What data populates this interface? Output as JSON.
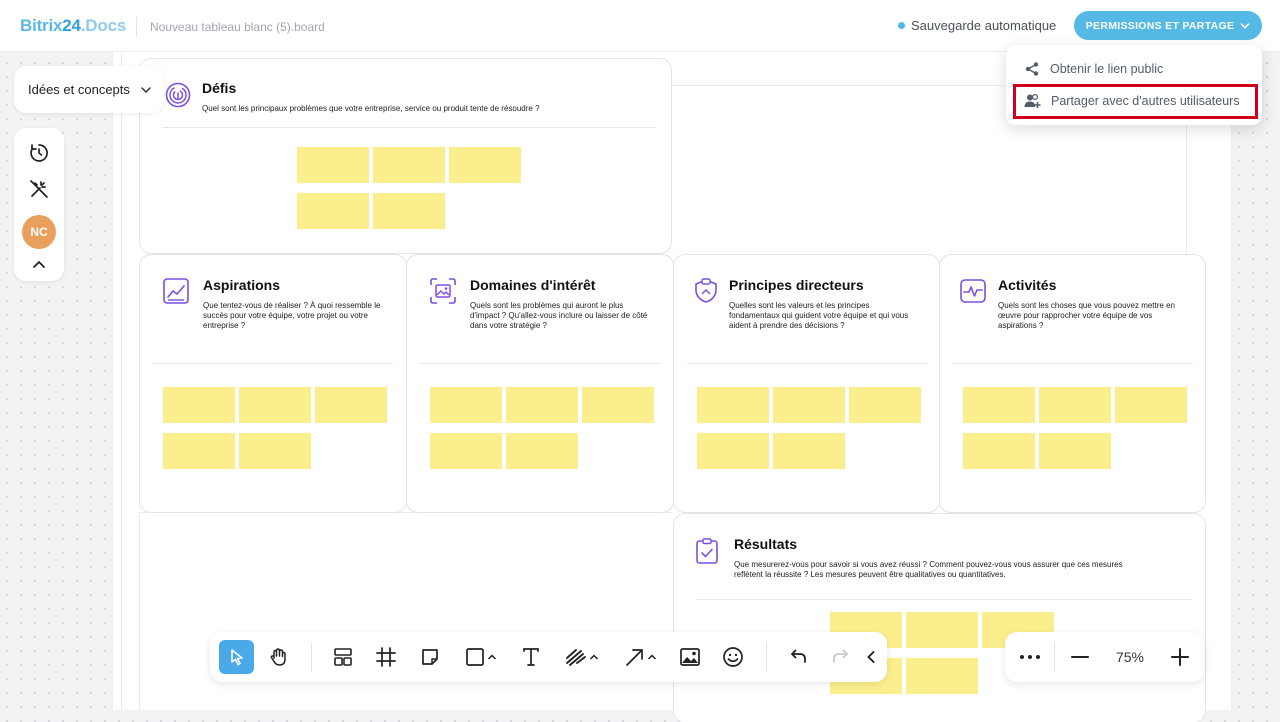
{
  "app": {
    "brand_part1": "Bitrix",
    "brand_part2": "24",
    "brand_part3": ".Docs"
  },
  "document": {
    "name": "Nouveau tableau blanc (5).board"
  },
  "status": {
    "autosave": "Sauvegarde automatique"
  },
  "header": {
    "permissions_button": "PERMISSIONS ET PARTAGE"
  },
  "share_menu": {
    "items": [
      {
        "label": "Obtenir le lien public",
        "icon": "share-icon"
      },
      {
        "label": "Partager avec d'autres utilisateurs",
        "icon": "add-users-icon"
      }
    ]
  },
  "board_selector": {
    "label": "Idées et concepts"
  },
  "user": {
    "initials": "NC"
  },
  "cards": {
    "defis": {
      "title": "Défis",
      "description": "Quel sont les principaux problèmes que votre entreprise, service ou produit tente de résoudre ?",
      "icon": "fingerprint-icon"
    },
    "aspirations": {
      "title": "Aspirations",
      "description": "Que tentez-vous de réaliser ? À quoi ressemble le succès pour votre équipe, votre projet ou votre entreprise ?",
      "icon": "chart-icon"
    },
    "domaines": {
      "title": "Domaines d'intérêt",
      "description": "Quels sont les problèmes qui auront le plus d'impact ? Qu'allez-vous inclure ou laisser de côté dans votre stratégie ?",
      "icon": "image-focus-icon"
    },
    "principes": {
      "title": "Principes directeurs",
      "description": "Quelles sont les valeurs et les principes fondamentaux qui guident votre équipe et qui vous aident à prendre des décisions ?",
      "icon": "shield-icon"
    },
    "activites": {
      "title": "Activités",
      "description": "Quels sont les choses que vous pouvez mettre en œuvre pour rapprocher votre équipe de vos aspirations ?",
      "icon": "activity-icon"
    },
    "resultats": {
      "title": "Résultats",
      "description": "Que mesurerez-vous pour savoir si vous avez réussi ? Comment pouvez-vous vous assurer que ces mesures reflètent la réussite ? Les mesures peuvent être qualitatives ou quantitatives.",
      "icon": "clipboard-check-icon"
    }
  },
  "zoom": {
    "value": "75%"
  },
  "colors": {
    "accent": "#55b9e6",
    "sticky": "#fbef8d",
    "highlight": "#d0021b",
    "card_icon": "#7b4fe0",
    "avatar": "#e8a05c"
  }
}
